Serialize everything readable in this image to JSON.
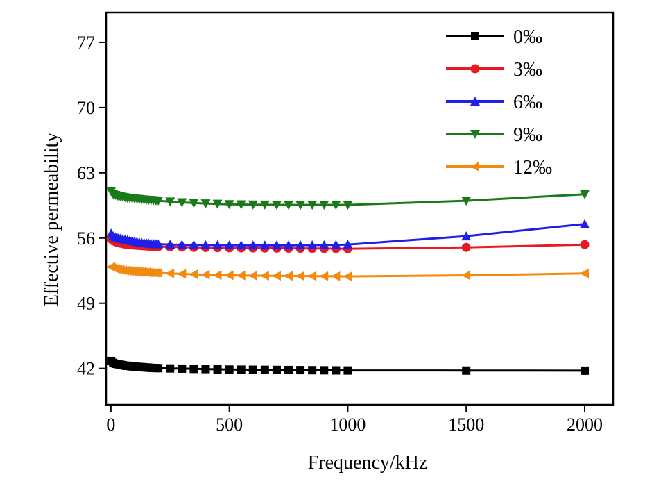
{
  "chart_data": {
    "type": "line",
    "xlabel": "Frequency/kHz",
    "ylabel": "Effective permeability",
    "xlim": [
      -20,
      2120
    ],
    "ylim": [
      38.1,
      80.2
    ],
    "xticks": [
      0,
      500,
      1000,
      1500,
      2000
    ],
    "yticks": [
      42,
      49,
      56,
      63,
      70,
      77
    ],
    "legend_position": "top-right",
    "grid": false,
    "x": [
      1,
      10,
      20,
      30,
      40,
      50,
      60,
      70,
      80,
      90,
      100,
      110,
      120,
      130,
      140,
      150,
      160,
      170,
      180,
      190,
      200,
      250,
      300,
      350,
      400,
      450,
      500,
      550,
      600,
      650,
      700,
      750,
      800,
      850,
      900,
      950,
      1000,
      1500,
      2000
    ],
    "series": [
      {
        "name": "0‰",
        "color": "#000000",
        "marker": "square",
        "values": [
          42.8,
          42.6,
          42.5,
          42.45,
          42.4,
          42.35,
          42.3,
          42.28,
          42.25,
          42.22,
          42.2,
          42.18,
          42.16,
          42.14,
          42.12,
          42.1,
          42.08,
          42.06,
          42.05,
          42.04,
          42.03,
          42.0,
          41.98,
          41.95,
          41.93,
          41.9,
          41.88,
          41.87,
          41.86,
          41.85,
          41.84,
          41.83,
          41.82,
          41.81,
          41.8,
          41.79,
          41.78,
          41.77,
          41.76
        ]
      },
      {
        "name": "3‰",
        "color": "#e8191f",
        "marker": "circle",
        "values": [
          55.9,
          55.7,
          55.6,
          55.5,
          55.45,
          55.4,
          55.35,
          55.3,
          55.28,
          55.26,
          55.24,
          55.22,
          55.2,
          55.18,
          55.16,
          55.14,
          55.12,
          55.1,
          55.09,
          55.08,
          55.07,
          55.05,
          55.03,
          55.0,
          54.98,
          54.96,
          54.95,
          54.94,
          54.93,
          54.92,
          54.91,
          54.9,
          54.89,
          54.88,
          54.87,
          54.86,
          54.85,
          55.0,
          55.3
        ]
      },
      {
        "name": "6‰",
        "color": "#1f1fe8",
        "marker": "triangle-up",
        "values": [
          56.5,
          56.2,
          56.1,
          56.0,
          55.95,
          55.9,
          55.85,
          55.8,
          55.75,
          55.7,
          55.65,
          55.6,
          55.55,
          55.5,
          55.48,
          55.45,
          55.42,
          55.4,
          55.38,
          55.36,
          55.35,
          55.3,
          55.28,
          55.26,
          55.25,
          55.24,
          55.23,
          55.22,
          55.22,
          55.22,
          55.22,
          55.22,
          55.23,
          55.24,
          55.25,
          55.27,
          55.3,
          56.2,
          57.5
        ]
      },
      {
        "name": "9‰",
        "color": "#1a7a1a",
        "marker": "triangle-down",
        "values": [
          61.0,
          60.7,
          60.6,
          60.5,
          60.45,
          60.4,
          60.35,
          60.3,
          60.28,
          60.25,
          60.22,
          60.2,
          60.17,
          60.15,
          60.12,
          60.1,
          60.08,
          60.06,
          60.04,
          60.02,
          60.0,
          59.9,
          59.82,
          59.76,
          59.7,
          59.66,
          59.62,
          59.6,
          59.58,
          59.57,
          59.56,
          59.55,
          59.55,
          59.55,
          59.55,
          59.55,
          59.55,
          60.0,
          60.7
        ]
      },
      {
        "name": "12‰",
        "color": "#f08a10",
        "marker": "triangle-left",
        "values": [
          52.9,
          52.8,
          52.7,
          52.65,
          52.6,
          52.55,
          52.5,
          52.48,
          52.46,
          52.44,
          52.42,
          52.4,
          52.38,
          52.36,
          52.34,
          52.32,
          52.3,
          52.29,
          52.28,
          52.27,
          52.26,
          52.2,
          52.15,
          52.1,
          52.05,
          52.02,
          52.0,
          51.98,
          51.96,
          51.95,
          51.94,
          51.93,
          51.92,
          51.91,
          51.9,
          51.89,
          51.88,
          52.0,
          52.2
        ]
      }
    ]
  }
}
